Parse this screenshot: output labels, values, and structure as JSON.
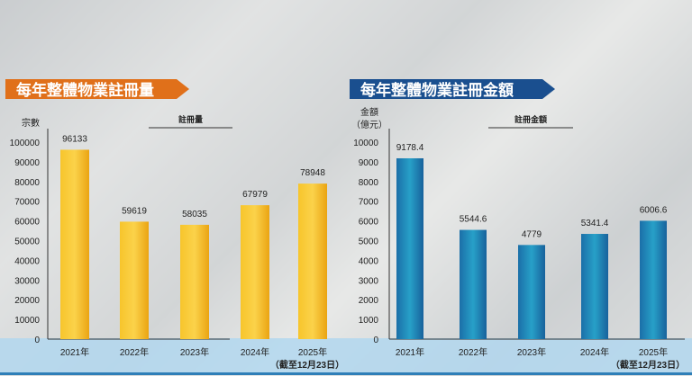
{
  "chart_data": [
    {
      "type": "bar",
      "title": "每年整體物業註冊量",
      "ylabel": "宗數",
      "legend": "註冊量",
      "categories": [
        "2021年",
        "2022年",
        "2023年",
        "2024年",
        "2025年"
      ],
      "note": "（截至12月23日）",
      "values": [
        96133,
        59619,
        58035,
        67979,
        78948
      ],
      "value_labels": [
        "96133",
        "59619",
        "58035",
        "67979",
        "78948"
      ],
      "ylim": [
        0,
        100000
      ],
      "yticks": [
        "0",
        "10000",
        "20000",
        "30000",
        "40000",
        "50000",
        "60000",
        "70000",
        "80000",
        "90000",
        "100000"
      ],
      "title_color": "#e0701a",
      "bar_color": "#f5b821"
    },
    {
      "type": "bar",
      "title": "每年整體物業註冊金額",
      "ylabel": "金額",
      "ylabel2": "（億元）",
      "legend": "註冊金額",
      "categories": [
        "2021年",
        "2022年",
        "2023年",
        "2024年",
        "2025年"
      ],
      "note": "（截至12月23日）",
      "values": [
        9178.4,
        5544.6,
        4779,
        5341.4,
        6006.6
      ],
      "value_labels": [
        "9178.4",
        "5544.6",
        "4779",
        "5341.4",
        "6006.6"
      ],
      "ylim": [
        0,
        10000
      ],
      "yticks": [
        "0",
        "1000",
        "2000",
        "3000",
        "4000",
        "5000",
        "6000",
        "7000",
        "8000",
        "9000",
        "10000"
      ],
      "title_color": "#1a4f8f",
      "bar_color": "#1f86b8"
    }
  ]
}
